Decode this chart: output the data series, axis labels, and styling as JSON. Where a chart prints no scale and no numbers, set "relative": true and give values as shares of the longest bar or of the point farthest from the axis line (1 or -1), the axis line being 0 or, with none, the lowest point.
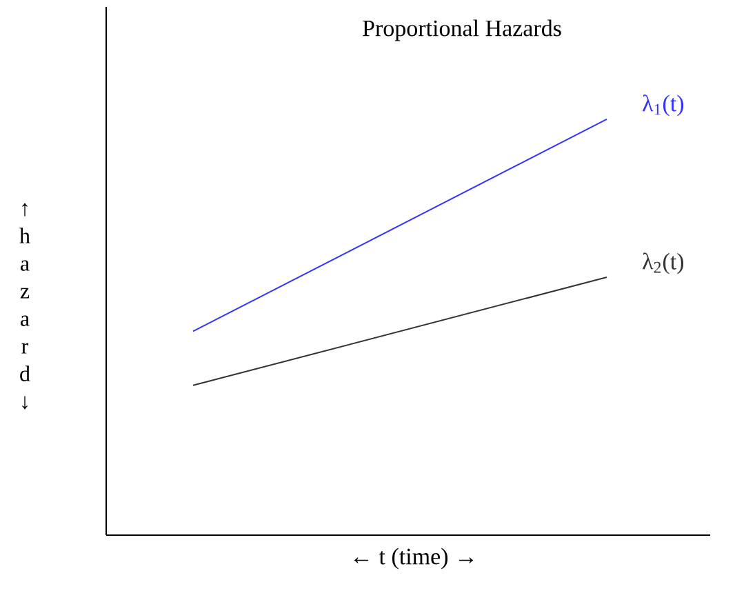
{
  "chart_data": {
    "type": "line",
    "title": "Proportional Hazards",
    "xlabel": "← t (time) →",
    "ylabel": "↑ h a z a r d ↓",
    "relative": true,
    "categories": [
      null,
      null
    ],
    "marker": "none",
    "line_style": "solid",
    "series": [
      {
        "name": "λ$_{1}$(t)",
        "color": "#3333ff",
        "values": [
          0.49,
          1
        ]
      },
      {
        "name": "λ$_{2}$(t)",
        "color": "#333333",
        "values": [
          0.36,
          0.62
        ]
      }
    ]
  }
}
